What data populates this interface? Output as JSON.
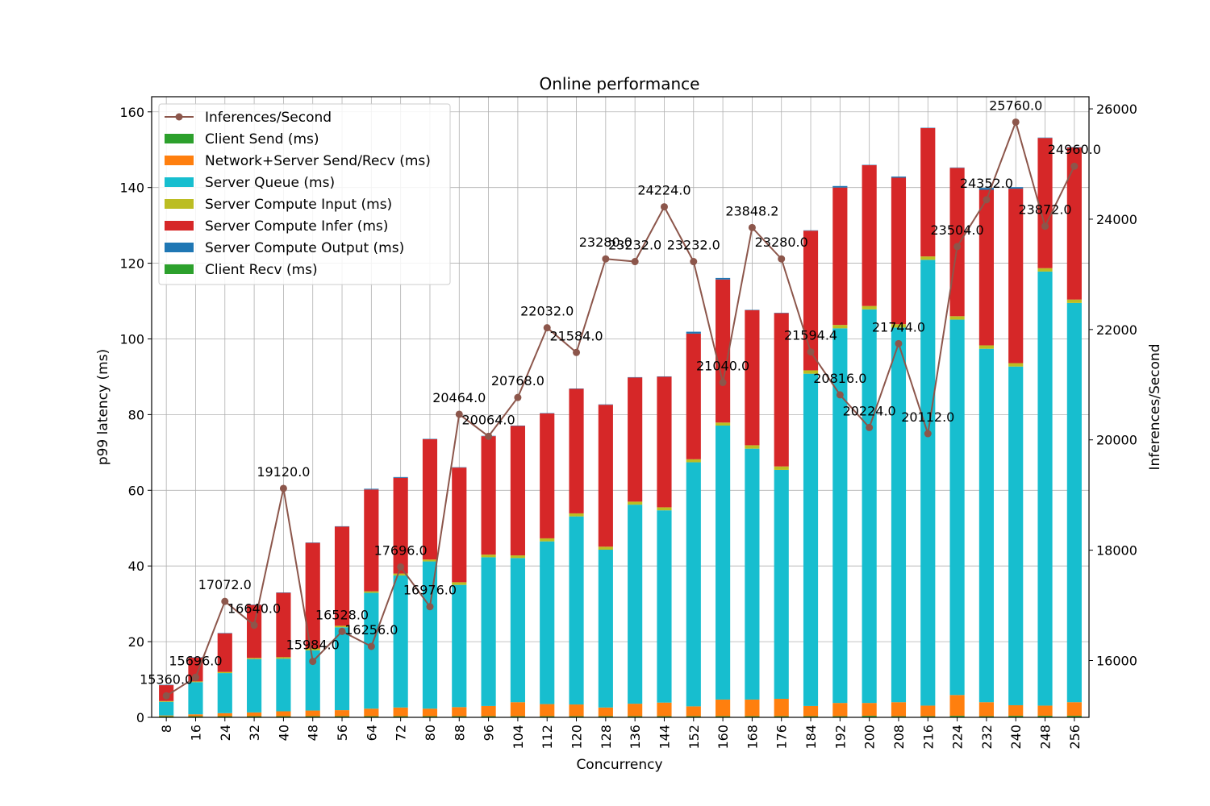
{
  "chart_data": {
    "type": "bar",
    "title": "Online performance",
    "xlabel": "Concurrency",
    "ylabel": "p99 latency (ms)",
    "y2label": "Inferences/Second",
    "ylim": [
      0,
      164
    ],
    "y2lim": [
      14970,
      26220
    ],
    "yticks": [
      0,
      20,
      40,
      60,
      80,
      100,
      120,
      140,
      160
    ],
    "y2ticks": [
      16000,
      18000,
      20000,
      22000,
      24000,
      26000
    ],
    "grid": true,
    "legend_position": "top-left",
    "categories": [
      "8",
      "16",
      "24",
      "32",
      "40",
      "48",
      "56",
      "64",
      "72",
      "80",
      "88",
      "96",
      "104",
      "112",
      "120",
      "128",
      "136",
      "144",
      "152",
      "160",
      "168",
      "176",
      "184",
      "192",
      "200",
      "208",
      "216",
      "224",
      "232",
      "240",
      "248",
      "256"
    ],
    "series": [
      {
        "name": "Client Send (ms)",
        "color": "#2ca02c",
        "values": [
          0.3,
          0.3,
          0.3,
          0.3,
          0.3,
          0.3,
          0.3,
          0.3,
          0.3,
          0.3,
          0.3,
          0.3,
          0.3,
          0.3,
          0.3,
          0.3,
          0.3,
          0.3,
          0.3,
          0.3,
          0.3,
          0.3,
          0.3,
          0.3,
          0.4,
          0.3,
          0.3,
          0.4,
          0.3,
          0.4,
          0.4,
          0.4
        ]
      },
      {
        "name": "Network+Server Send/Recv (ms)",
        "color": "#ff7f0e",
        "values": [
          0.2,
          0.5,
          0.8,
          1.0,
          1.3,
          1.5,
          1.6,
          2.0,
          2.3,
          2.0,
          2.4,
          2.7,
          3.7,
          3.2,
          3.1,
          2.3,
          3.3,
          3.6,
          2.6,
          4.4,
          4.4,
          4.6,
          2.7,
          3.5,
          3.4,
          3.7,
          2.8,
          5.5,
          3.7,
          2.8,
          2.7,
          3.6
        ]
      },
      {
        "name": "Server Queue (ms)",
        "color": "#17becf",
        "values": [
          3.6,
          8.5,
          10.6,
          14.1,
          13.9,
          15.9,
          21.9,
          30.6,
          34.9,
          38.9,
          32.3,
          39.3,
          38.1,
          43.0,
          49.7,
          41.7,
          52.6,
          50.8,
          64.5,
          72.4,
          66.3,
          60.5,
          87.8,
          99.0,
          104.0,
          99.0,
          117.8,
          99.2,
          93.4,
          89.5,
          114.7,
          105.5
        ]
      },
      {
        "name": "Server Compute Input (ms)",
        "color": "#bcbd22",
        "values": [
          0.2,
          0.2,
          0.3,
          0.3,
          0.4,
          0.5,
          0.4,
          0.4,
          0.5,
          0.5,
          0.7,
          0.7,
          0.7,
          0.8,
          0.8,
          0.8,
          0.8,
          0.8,
          0.8,
          0.8,
          0.9,
          0.9,
          0.9,
          0.9,
          0.9,
          0.9,
          0.9,
          0.9,
          0.9,
          0.9,
          0.9,
          0.9
        ]
      },
      {
        "name": "Server Compute Infer (ms)",
        "color": "#d62728",
        "values": [
          4.2,
          6.3,
          10.2,
          14.0,
          17.0,
          27.9,
          26.2,
          26.9,
          25.3,
          31.8,
          30.3,
          31.3,
          34.2,
          33.0,
          32.9,
          37.5,
          32.8,
          34.5,
          33.2,
          37.8,
          35.7,
          40.5,
          36.9,
          36.3,
          37.2,
          38.7,
          33.9,
          39.2,
          41.1,
          46.1,
          34.4,
          40.2
        ]
      },
      {
        "name": "Server Compute Output (ms)",
        "color": "#1f77b4",
        "values": [
          0.1,
          0.1,
          0.1,
          0.1,
          0.1,
          0.1,
          0.1,
          0.2,
          0.2,
          0.1,
          0.1,
          0.1,
          0.1,
          0.1,
          0.1,
          0.1,
          0.1,
          0.1,
          0.5,
          0.4,
          0.1,
          0.1,
          0.1,
          0.4,
          0.1,
          0.3,
          0.1,
          0.1,
          0.5,
          0.4,
          0.1,
          0.1
        ]
      },
      {
        "name": "Client Recv (ms)",
        "color": "#2ca02c",
        "values": [
          0,
          0,
          0,
          0,
          0,
          0,
          0,
          0,
          0,
          0,
          0,
          0,
          0,
          0,
          0,
          0,
          0,
          0,
          0,
          0,
          0,
          0,
          0,
          0,
          0,
          0,
          0,
          0,
          0,
          0,
          0,
          0
        ]
      }
    ],
    "line": {
      "name": "Inferences/Second",
      "color": "#8c564b",
      "values": [
        15360.0,
        15696.0,
        17072.0,
        16640.0,
        19120.0,
        15984.0,
        16528.0,
        16256.0,
        17696.0,
        16976.0,
        20464.0,
        20064.0,
        20768.0,
        22032.0,
        21584.0,
        23280.0,
        23232.0,
        24224.0,
        23232.0,
        21040.0,
        23848.2,
        23280.0,
        21594.4,
        20816.0,
        20224.0,
        21744.0,
        20112.0,
        23504.0,
        24352.0,
        25760.0,
        23872.0,
        24960.0
      ],
      "labels": [
        "15360.0",
        "15696.0",
        "17072.0",
        "16640.0",
        "19120.0",
        "15984.0",
        "16528.0",
        "16256.0",
        "17696.0",
        "16976.0",
        "20464.0",
        "20064.0",
        "20768.0",
        "22032.0",
        "21584.0",
        "23280.0",
        "23232.0",
        "24224.0",
        "23232.0",
        "21040.0",
        "23848.2",
        "23280.0",
        "21594.4",
        "20816.0",
        "20224.0",
        "21744.0",
        "20112.0",
        "23504.0",
        "24352.0",
        "25760.0",
        "23872.0",
        "24960.0"
      ]
    }
  }
}
